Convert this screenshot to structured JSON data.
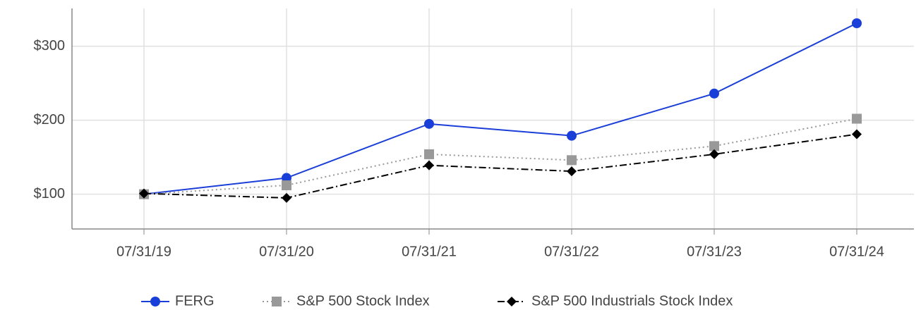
{
  "chart_data": {
    "type": "line",
    "categories": [
      "07/31/19",
      "07/31/20",
      "07/31/21",
      "07/31/22",
      "07/31/23",
      "07/31/24"
    ],
    "series": [
      {
        "name": "FERG",
        "color": "#1a3ed8",
        "line_style": "solid",
        "marker": "circle",
        "values": [
          100,
          122,
          195,
          179,
          236,
          331
        ]
      },
      {
        "name": "S&P 500 Stock Index",
        "color": "#999999",
        "line_style": "dotted",
        "marker": "square",
        "values": [
          100,
          112,
          154,
          146,
          165,
          202
        ]
      },
      {
        "name": "S&P 500 Industrials Stock Index",
        "color": "#000000",
        "line_style": "dashdot",
        "marker": "diamond",
        "values": [
          101,
          95,
          139,
          131,
          154,
          181
        ]
      }
    ],
    "ylim": [
      53,
      351
    ],
    "yticks": [
      {
        "value": 100,
        "label": "$100"
      },
      {
        "value": 200,
        "label": "$200"
      },
      {
        "value": 300,
        "label": "$300"
      }
    ],
    "grid": true,
    "legend": "bottom"
  }
}
